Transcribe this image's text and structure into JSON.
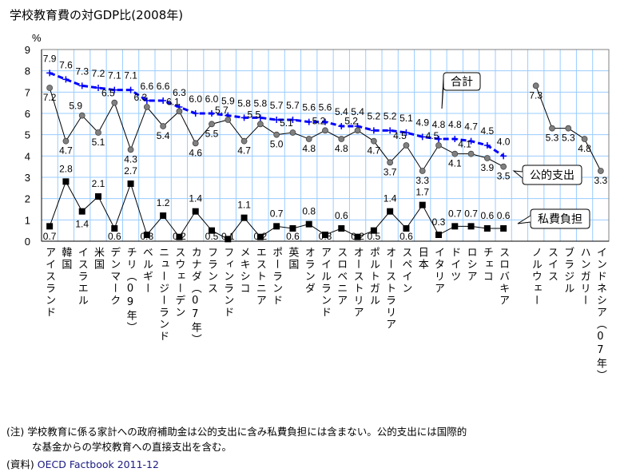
{
  "title": "学校教育費の対GDP比(2008年)",
  "notes": {
    "note_line1": "(注) 学校教育に係る家計への政府補助金は公的支出に含み私費負担には含まない。公的支出には国際的",
    "note_line2": "な基金からの学校教育への直接支出を含む。",
    "source_label": "(資料)",
    "source_text": "OECD Factbook 2011-12"
  },
  "chart_data": {
    "type": "line",
    "title": "学校教育費の対GDP比(2008年)",
    "ylabel": "%",
    "ylim": [
      0,
      9
    ],
    "yticks": [
      "0",
      "1",
      "2",
      "3",
      "4",
      "5",
      "6",
      "7",
      "8",
      "9"
    ],
    "grid": true,
    "categories": [
      "アイスランド",
      "韓国",
      "イスラエル",
      "米国",
      "デンマーク",
      "チリ（09年）",
      "ベルギー",
      "ニュージーランド",
      "スウェーデン",
      "カナダ（07年）",
      "フランス",
      "フィンランド",
      "メキシコ",
      "エストニア",
      "ポーランド",
      "英国",
      "オランダ",
      "アイルランド",
      "スロベニア",
      "オーストリア",
      "ポルトガル",
      "オーストラリア",
      "スペイン",
      "日本",
      "イタリア",
      "ドイツ",
      "ロシア",
      "チェコ",
      "スロバキア",
      "",
      "ノルウェー",
      "スイス",
      "ブラジル",
      "ハンガリー",
      "インドネシア（07年）"
    ],
    "series": [
      {
        "name": "合計",
        "color": "#0000ff",
        "values": [
          7.9,
          7.6,
          7.3,
          7.2,
          7.1,
          7.1,
          6.6,
          6.6,
          6.3,
          6.0,
          6.0,
          5.9,
          5.8,
          5.8,
          5.7,
          5.7,
          5.6,
          5.6,
          5.4,
          5.4,
          5.2,
          5.2,
          5.1,
          4.9,
          4.8,
          4.8,
          4.7,
          4.5,
          4.0,
          null,
          null,
          null,
          null,
          null,
          null
        ]
      },
      {
        "name": "公的支出",
        "color": "#808080",
        "values": [
          7.2,
          4.7,
          5.9,
          5.1,
          6.5,
          4.3,
          6.3,
          5.4,
          6.1,
          4.6,
          5.5,
          5.7,
          4.7,
          5.5,
          5.0,
          5.1,
          4.8,
          5.2,
          4.8,
          5.2,
          4.7,
          3.7,
          4.5,
          3.3,
          4.5,
          4.1,
          4.1,
          3.9,
          3.5,
          null,
          7.3,
          5.3,
          5.3,
          4.8,
          3.3
        ]
      },
      {
        "name": "私費負担",
        "color": "#000000",
        "values": [
          0.7,
          2.8,
          1.4,
          2.1,
          0.6,
          2.7,
          0.3,
          1.2,
          0.2,
          1.4,
          0.5,
          0.1,
          1.1,
          0.2,
          0.7,
          0.6,
          0.8,
          0.3,
          0.6,
          0.2,
          0.5,
          1.4,
          0.6,
          1.7,
          0.3,
          0.7,
          0.7,
          0.6,
          0.6,
          null,
          null,
          null,
          null,
          null,
          null
        ]
      }
    ],
    "legend": {
      "placement": "callouts-right",
      "labels": [
        "合計",
        "公的支出",
        "私費負担"
      ]
    }
  }
}
